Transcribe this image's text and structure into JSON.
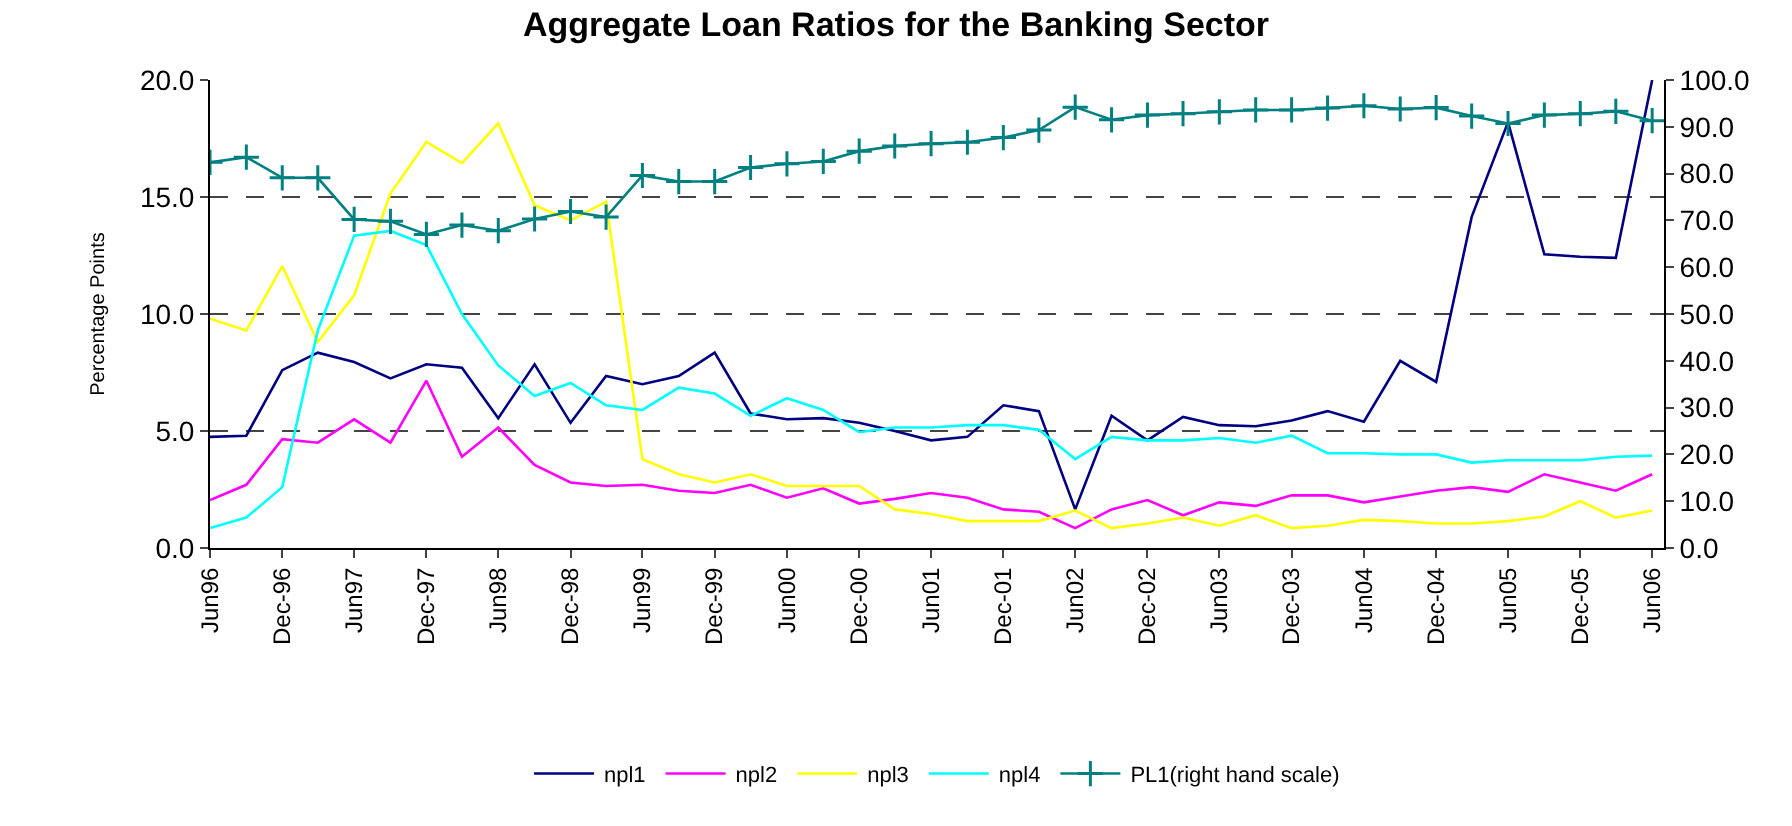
{
  "chart_data": {
    "type": "line",
    "title": "Aggregate Loan Ratios for the Banking Sector",
    "ylabel": "Percentage Points",
    "x": [
      "1996-06",
      "1996-09",
      "1996-12",
      "1997-03",
      "1997-06",
      "1997-09",
      "1997-12",
      "1998-03",
      "1998-06",
      "1998-09",
      "1998-12",
      "1999-03",
      "1999-06",
      "1999-09",
      "1999-12",
      "2000-03",
      "2000-06",
      "2000-09",
      "2000-12",
      "2001-03",
      "2001-06",
      "2001-09",
      "2001-12",
      "2002-03",
      "2002-06",
      "2002-09",
      "2002-12",
      "2003-03",
      "2003-06",
      "2003-09",
      "2003-12",
      "2004-03",
      "2004-06",
      "2004-09",
      "2004-12",
      "2005-03",
      "2005-06",
      "2005-09",
      "2005-12",
      "2006-03",
      "2006-06"
    ],
    "series": [
      {
        "name": "npl1",
        "color": "#000080",
        "marker": "none",
        "values": [
          4.75,
          4.8,
          7.6,
          8.35,
          7.95,
          7.25,
          7.85,
          7.7,
          5.55,
          7.85,
          5.35,
          7.35,
          7.0,
          7.35,
          8.35,
          5.75,
          5.5,
          5.55,
          5.35,
          5.0,
          4.6,
          4.75,
          6.1,
          5.85,
          1.65,
          5.65,
          4.6,
          5.6,
          5.25,
          5.2,
          5.45,
          5.85,
          5.4,
          8.0,
          7.1,
          14.15,
          18.2,
          12.55,
          12.45,
          12.4,
          20.0
        ]
      },
      {
        "name": "npl2",
        "color": "#ff00ff",
        "marker": "none",
        "values": [
          2.05,
          2.7,
          4.65,
          4.5,
          5.5,
          4.5,
          7.15,
          3.9,
          5.15,
          3.55,
          2.8,
          2.65,
          2.7,
          2.45,
          2.35,
          2.7,
          2.15,
          2.55,
          1.9,
          2.1,
          2.35,
          2.15,
          1.65,
          1.55,
          0.85,
          1.65,
          2.05,
          1.4,
          1.95,
          1.8,
          2.25,
          2.25,
          1.95,
          2.2,
          2.45,
          2.6,
          2.4,
          3.15,
          2.8,
          2.45,
          3.15
        ]
      },
      {
        "name": "npl3",
        "color": "#ffff00",
        "marker": "none",
        "values": [
          9.8,
          9.3,
          12.05,
          8.8,
          10.8,
          15.15,
          17.35,
          16.45,
          18.15,
          14.65,
          14.0,
          14.8,
          3.8,
          3.15,
          2.8,
          3.15,
          2.65,
          2.65,
          2.65,
          1.65,
          1.45,
          1.15,
          1.15,
          1.15,
          1.6,
          0.85,
          1.05,
          1.3,
          0.95,
          1.4,
          0.85,
          0.95,
          1.2,
          1.15,
          1.05,
          1.05,
          1.15,
          1.35,
          2.0,
          1.3,
          1.6
        ]
      },
      {
        "name": "npl4",
        "color": "#00ffff",
        "marker": "none",
        "values": [
          0.85,
          1.3,
          2.6,
          9.3,
          13.35,
          13.55,
          12.95,
          10.0,
          7.8,
          6.5,
          7.05,
          6.1,
          5.9,
          6.85,
          6.6,
          5.65,
          6.4,
          5.9,
          4.95,
          5.15,
          5.15,
          5.25,
          5.25,
          5.05,
          3.8,
          4.75,
          4.6,
          4.6,
          4.7,
          4.5,
          4.8,
          4.05,
          4.05,
          4.0,
          4.0,
          3.65,
          3.75,
          3.75,
          3.75,
          3.9,
          3.95
        ]
      },
      {
        "name": "PL1(right hand scale)",
        "color": "#008080",
        "marker": "cross",
        "axis": "y2",
        "values": [
          82.4,
          83.5,
          79.1,
          79.1,
          70.2,
          69.8,
          67.0,
          69.0,
          67.8,
          70.3,
          71.9,
          70.7,
          79.6,
          78.3,
          78.3,
          81.3,
          82.1,
          82.6,
          84.8,
          85.9,
          86.4,
          86.7,
          87.7,
          89.3,
          94.2,
          91.5,
          92.5,
          92.8,
          93.2,
          93.6,
          93.6,
          94.0,
          94.5,
          93.8,
          94.1,
          92.3,
          90.7,
          92.5,
          92.8,
          93.3,
          91.3
        ]
      }
    ],
    "xlim": [
      "1996-06",
      "2006-07"
    ],
    "xticks": [
      {
        "value": "1996-06",
        "label": "Jun96"
      },
      {
        "value": "1996-12",
        "label": "Dec-96"
      },
      {
        "value": "1997-06",
        "label": "Jun97"
      },
      {
        "value": "1997-12",
        "label": "Dec-97"
      },
      {
        "value": "1998-06",
        "label": "Jun98"
      },
      {
        "value": "1998-12",
        "label": "Dec-98"
      },
      {
        "value": "1999-06",
        "label": "Jun99"
      },
      {
        "value": "1999-12",
        "label": "Dec-99"
      },
      {
        "value": "2000-06",
        "label": "Jun00"
      },
      {
        "value": "2000-12",
        "label": "Dec-00"
      },
      {
        "value": "2001-06",
        "label": "Jun01"
      },
      {
        "value": "2001-12",
        "label": "Dec-01"
      },
      {
        "value": "2002-06",
        "label": "Jun02"
      },
      {
        "value": "2002-12",
        "label": "Dec-02"
      },
      {
        "value": "2003-06",
        "label": "Jun03"
      },
      {
        "value": "2003-12",
        "label": "Dec-03"
      },
      {
        "value": "2004-06",
        "label": "Jun04"
      },
      {
        "value": "2004-12",
        "label": "Dec-04"
      },
      {
        "value": "2005-06",
        "label": "Jun05"
      },
      {
        "value": "2005-12",
        "label": "Dec-05"
      },
      {
        "value": "2006-06",
        "label": "Jun06"
      }
    ],
    "ylim": [
      0,
      20
    ],
    "yticks": [
      {
        "value": 0,
        "label": "0.0"
      },
      {
        "value": 5,
        "label": "5.0"
      },
      {
        "value": 10,
        "label": "10.0"
      },
      {
        "value": 15,
        "label": "15.0"
      },
      {
        "value": 20,
        "label": "20.0"
      }
    ],
    "y2lim": [
      0,
      100
    ],
    "y2ticks": [
      {
        "value": 0,
        "label": "0.0"
      },
      {
        "value": 10,
        "label": "10.0"
      },
      {
        "value": 20,
        "label": "20.0"
      },
      {
        "value": 30,
        "label": "30.0"
      },
      {
        "value": 40,
        "label": "40.0"
      },
      {
        "value": 50,
        "label": "50.0"
      },
      {
        "value": 60,
        "label": "60.0"
      },
      {
        "value": 70,
        "label": "70.0"
      },
      {
        "value": 80,
        "label": "80.0"
      },
      {
        "value": 90,
        "label": "90.0"
      },
      {
        "value": 100,
        "label": "100.0"
      }
    ],
    "grid": "y",
    "legend": "bottom",
    "line_style": "solid"
  }
}
